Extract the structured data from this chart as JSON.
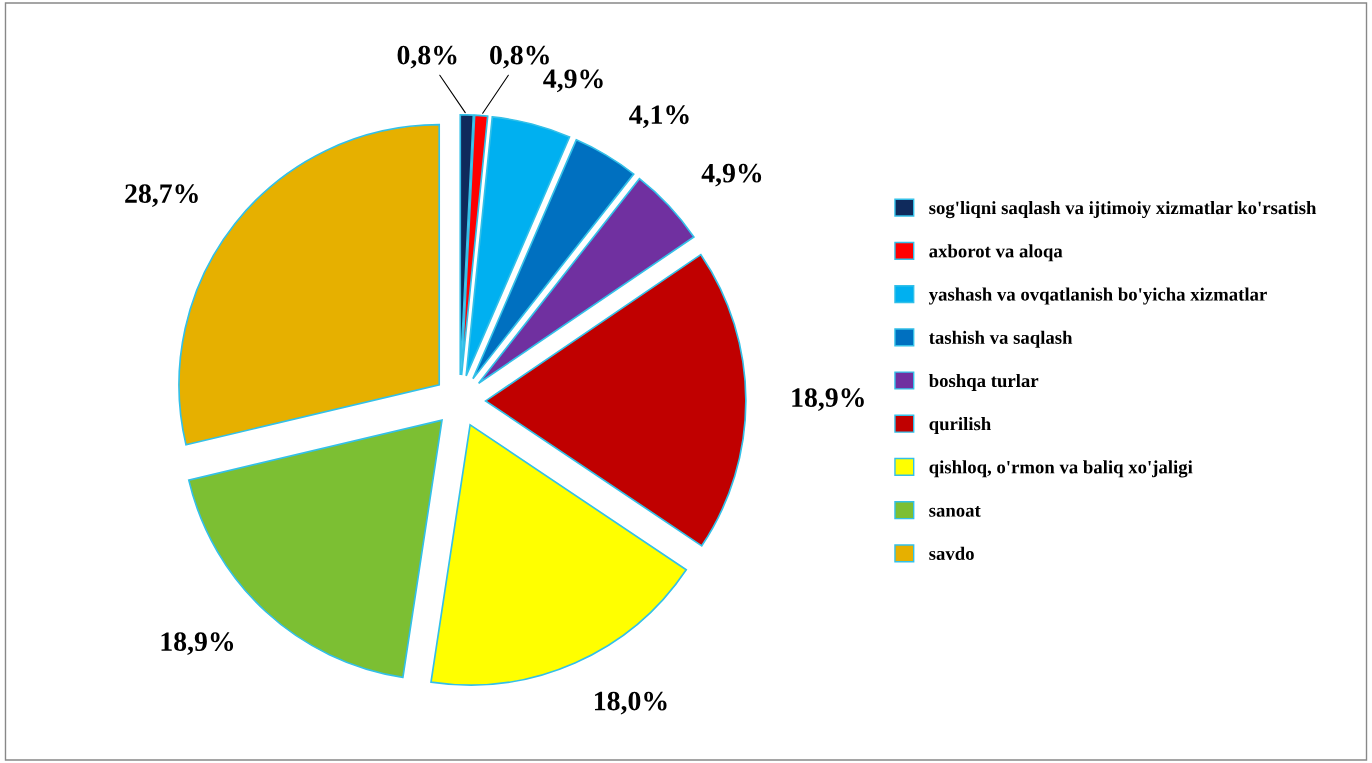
{
  "chart_data": {
    "type": "pie",
    "categories": [
      "sog'liqni saqlash va ijtimoiy xizmatlar ko'rsatish",
      "axborot va aloqa",
      "yashash va ovqatlanish bo'yicha xizmatlar",
      "tashish va saqlash",
      "boshqa turlar",
      "qurilish",
      "qishloq, o'rmon va baliq xo'jaligi",
      "sanoat",
      "savdo"
    ],
    "values": [
      0.8,
      0.8,
      4.9,
      4.1,
      4.9,
      18.9,
      18.0,
      18.9,
      28.7
    ],
    "value_labels": [
      "0,8%",
      "0,8%",
      "4,9%",
      "4,1%",
      "4,9%",
      "18,9%",
      "18,0%",
      "18,9%",
      "28,7%"
    ],
    "colors": [
      "#0f2a5c",
      "#ff0000",
      "#00b0f0",
      "#0070c0",
      "#7030a0",
      "#c00000",
      "#ffff00",
      "#7cbf33",
      "#e6b000"
    ],
    "legend": "right"
  }
}
